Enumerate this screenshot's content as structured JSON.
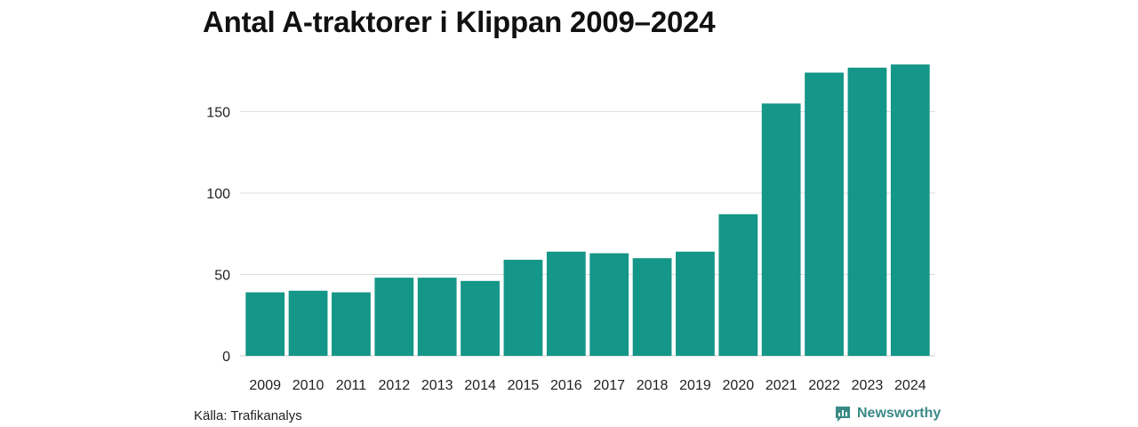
{
  "title": "Antal A-traktorer i Klippan 2009–2024",
  "source": "Källa: Trafikanalys",
  "brand": {
    "name": "Newsworthy",
    "icon": "newsworthy-logo-icon"
  },
  "colors": {
    "bar": "#149688",
    "grid": "#dddddd",
    "axis": "#cccccc",
    "brand": "#3a8a86"
  },
  "chart_data": {
    "type": "bar",
    "title": "Antal A-traktorer i Klippan 2009–2024",
    "xlabel": "",
    "ylabel": "",
    "categories": [
      "2009",
      "2010",
      "2011",
      "2012",
      "2013",
      "2014",
      "2015",
      "2016",
      "2017",
      "2018",
      "2019",
      "2020",
      "2021",
      "2022",
      "2023",
      "2024"
    ],
    "values": [
      39,
      40,
      39,
      48,
      48,
      46,
      59,
      64,
      63,
      60,
      64,
      87,
      155,
      174,
      177,
      179
    ],
    "ylim": [
      0,
      180
    ],
    "yticks": [
      0,
      50,
      100,
      150
    ],
    "grid": true,
    "legend": "none"
  }
}
